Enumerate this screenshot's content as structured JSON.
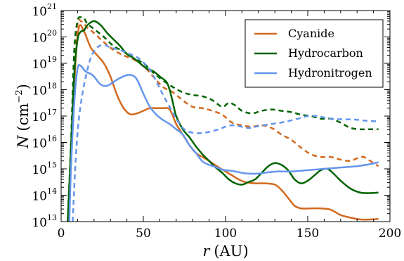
{
  "chart_data": {
    "type": "line",
    "x_label_var": "r",
    "x_label_unit": "(AU)",
    "y_label_var": "N",
    "y_label_unit_pre": "(cm",
    "y_label_unit_exp": "−2",
    "y_label_unit_post": ")",
    "x_ticks": [
      "0",
      "50",
      "100",
      "150",
      "200"
    ],
    "y_ticks": [
      {
        "base": "10",
        "exp": "13"
      },
      {
        "base": "10",
        "exp": "14"
      },
      {
        "base": "10",
        "exp": "15"
      },
      {
        "base": "10",
        "exp": "16"
      },
      {
        "base": "10",
        "exp": "17"
      },
      {
        "base": "10",
        "exp": "18"
      },
      {
        "base": "10",
        "exp": "19"
      },
      {
        "base": "10",
        "exp": "20"
      },
      {
        "base": "10",
        "exp": "21"
      }
    ],
    "xlim": [
      0,
      200
    ],
    "ylim_log10": [
      13,
      21
    ],
    "y_scale": "log",
    "grid": false,
    "legend_position": "top-right",
    "series": [
      {
        "name": "Cyanide",
        "color": "#d2691e",
        "solid": [
          [
            4,
            13
          ],
          [
            5.5,
            14.5
          ],
          [
            7,
            16.8
          ],
          [
            9,
            19.3
          ],
          [
            11,
            20.4
          ],
          [
            14,
            20.2
          ],
          [
            18,
            19.6
          ],
          [
            22,
            19.3
          ],
          [
            26,
            19.0
          ],
          [
            30,
            18.5
          ],
          [
            34,
            17.8
          ],
          [
            38,
            17.3
          ],
          [
            42,
            17.07
          ],
          [
            46,
            17.1
          ],
          [
            50,
            17.2
          ],
          [
            54,
            17.3
          ],
          [
            58,
            17.3
          ],
          [
            62,
            17.3
          ],
          [
            66,
            17.25
          ],
          [
            70,
            16.7
          ],
          [
            74,
            16.3
          ],
          [
            78,
            15.9
          ],
          [
            82,
            15.6
          ],
          [
            86,
            15.45
          ],
          [
            90,
            15.3
          ],
          [
            96,
            15.05
          ],
          [
            100,
            14.9
          ],
          [
            104,
            14.75
          ],
          [
            108,
            14.6
          ],
          [
            112,
            14.5
          ],
          [
            118,
            14.45
          ],
          [
            124,
            14.45
          ],
          [
            130,
            14.4
          ],
          [
            134,
            14.2
          ],
          [
            138,
            13.9
          ],
          [
            142,
            13.6
          ],
          [
            146,
            13.5
          ],
          [
            152,
            13.5
          ],
          [
            158,
            13.5
          ],
          [
            164,
            13.45
          ],
          [
            170,
            13.25
          ],
          [
            176,
            13.15
          ],
          [
            182,
            13.08
          ],
          [
            188,
            13.08
          ],
          [
            193,
            13.1
          ]
        ],
        "dashed": [
          [
            4,
            13
          ],
          [
            6,
            15.5
          ],
          [
            8,
            18.8
          ],
          [
            10,
            20.5
          ],
          [
            12,
            20.6
          ],
          [
            16,
            20.35
          ],
          [
            20,
            20.15
          ],
          [
            26,
            19.8
          ],
          [
            32,
            19.5
          ],
          [
            38,
            19.3
          ],
          [
            44,
            19.15
          ],
          [
            50,
            18.9
          ],
          [
            56,
            18.5
          ],
          [
            62,
            18.1
          ],
          [
            68,
            17.9
          ],
          [
            74,
            17.6
          ],
          [
            80,
            17.35
          ],
          [
            86,
            17.3
          ],
          [
            92,
            17.2
          ],
          [
            98,
            17.05
          ],
          [
            104,
            16.75
          ],
          [
            110,
            16.65
          ],
          [
            116,
            16.6
          ],
          [
            122,
            16.65
          ],
          [
            128,
            16.55
          ],
          [
            134,
            16.3
          ],
          [
            140,
            16.1
          ],
          [
            146,
            15.8
          ],
          [
            152,
            15.55
          ],
          [
            158,
            15.45
          ],
          [
            164,
            15.45
          ],
          [
            170,
            15.35
          ],
          [
            176,
            15.3
          ],
          [
            180,
            15.4
          ],
          [
            184,
            15.45
          ],
          [
            188,
            15.3
          ],
          [
            193,
            15.1
          ]
        ]
      },
      {
        "name": "Hydrocarbon",
        "color": "#006400",
        "solid": [
          [
            4,
            13
          ],
          [
            6,
            15.8
          ],
          [
            8,
            18.6
          ],
          [
            10,
            19.9
          ],
          [
            12,
            20.2
          ],
          [
            14,
            20.25
          ],
          [
            16,
            20.45
          ],
          [
            20,
            20.6
          ],
          [
            24,
            20.45
          ],
          [
            28,
            20.15
          ],
          [
            32,
            19.9
          ],
          [
            36,
            19.65
          ],
          [
            40,
            19.35
          ],
          [
            44,
            19.2
          ],
          [
            48,
            19.0
          ],
          [
            52,
            18.8
          ],
          [
            56,
            18.7
          ],
          [
            60,
            18.5
          ],
          [
            64,
            18.3
          ],
          [
            66,
            18.0
          ],
          [
            68,
            17.5
          ],
          [
            70,
            17.0
          ],
          [
            74,
            16.5
          ],
          [
            78,
            16.2
          ],
          [
            82,
            15.85
          ],
          [
            86,
            15.55
          ],
          [
            90,
            15.3
          ],
          [
            94,
            15.05
          ],
          [
            98,
            14.85
          ],
          [
            102,
            14.6
          ],
          [
            106,
            14.45
          ],
          [
            110,
            14.4
          ],
          [
            114,
            14.5
          ],
          [
            118,
            14.6
          ],
          [
            122,
            14.85
          ],
          [
            126,
            15.1
          ],
          [
            130,
            15.22
          ],
          [
            134,
            15.15
          ],
          [
            138,
            14.95
          ],
          [
            142,
            14.6
          ],
          [
            146,
            14.45
          ],
          [
            150,
            14.55
          ],
          [
            154,
            14.75
          ],
          [
            158,
            14.95
          ],
          [
            162,
            15.0
          ],
          [
            166,
            14.8
          ],
          [
            170,
            14.55
          ],
          [
            176,
            14.25
          ],
          [
            182,
            14.1
          ],
          [
            188,
            14.08
          ],
          [
            193,
            14.1
          ]
        ],
        "dashed": [
          [
            4,
            13
          ],
          [
            6,
            16.0
          ],
          [
            8,
            19.5
          ],
          [
            10,
            20.6
          ],
          [
            12,
            20.75
          ],
          [
            14,
            20.7
          ],
          [
            16,
            20.5
          ],
          [
            20,
            20.3
          ],
          [
            26,
            20.0
          ],
          [
            32,
            19.65
          ],
          [
            38,
            19.45
          ],
          [
            44,
            19.2
          ],
          [
            50,
            19.0
          ],
          [
            56,
            18.65
          ],
          [
            62,
            18.35
          ],
          [
            68,
            18.1
          ],
          [
            74,
            17.9
          ],
          [
            80,
            17.8
          ],
          [
            86,
            17.75
          ],
          [
            92,
            17.6
          ],
          [
            98,
            17.35
          ],
          [
            102,
            17.5
          ],
          [
            106,
            17.4
          ],
          [
            110,
            17.2
          ],
          [
            116,
            17.1
          ],
          [
            122,
            17.2
          ],
          [
            128,
            17.25
          ],
          [
            134,
            17.2
          ],
          [
            140,
            17.15
          ],
          [
            146,
            17.05
          ],
          [
            152,
            17.0
          ],
          [
            158,
            16.9
          ],
          [
            164,
            16.9
          ],
          [
            170,
            16.75
          ],
          [
            176,
            16.55
          ],
          [
            182,
            16.5
          ],
          [
            188,
            16.5
          ],
          [
            193,
            16.5
          ]
        ]
      },
      {
        "name": "Hydronitrogen",
        "color": "#6495ed",
        "solid": [
          [
            5,
            13
          ],
          [
            6,
            15
          ],
          [
            8,
            17.5
          ],
          [
            10,
            18.8
          ],
          [
            12,
            18.9
          ],
          [
            14,
            18.75
          ],
          [
            16,
            18.65
          ],
          [
            18,
            18.6
          ],
          [
            20,
            18.5
          ],
          [
            24,
            18.2
          ],
          [
            28,
            18.15
          ],
          [
            32,
            18.3
          ],
          [
            36,
            18.45
          ],
          [
            40,
            18.55
          ],
          [
            43,
            18.55
          ],
          [
            46,
            18.4
          ],
          [
            50,
            17.85
          ],
          [
            54,
            17.35
          ],
          [
            58,
            17.05
          ],
          [
            62,
            16.85
          ],
          [
            66,
            16.7
          ],
          [
            70,
            16.5
          ],
          [
            74,
            16.3
          ],
          [
            78,
            15.9
          ],
          [
            82,
            15.6
          ],
          [
            86,
            15.28
          ],
          [
            90,
            15.15
          ],
          [
            94,
            15.07
          ],
          [
            98,
            14.97
          ],
          [
            104,
            14.92
          ],
          [
            110,
            14.85
          ],
          [
            114,
            14.82
          ],
          [
            120,
            14.82
          ],
          [
            126,
            14.87
          ],
          [
            132,
            14.9
          ],
          [
            140,
            14.9
          ],
          [
            150,
            14.95
          ],
          [
            160,
            15.0
          ],
          [
            170,
            15.05
          ],
          [
            180,
            15.1
          ],
          [
            188,
            15.18
          ],
          [
            193,
            15.25
          ]
        ],
        "dashed": [
          [
            7,
            13
          ],
          [
            9,
            15.5
          ],
          [
            11,
            17.0
          ],
          [
            14,
            18.2
          ],
          [
            18,
            19.2
          ],
          [
            22,
            19.6
          ],
          [
            26,
            19.7
          ],
          [
            30,
            19.6
          ],
          [
            36,
            19.5
          ],
          [
            42,
            19.35
          ],
          [
            48,
            19.15
          ],
          [
            54,
            18.75
          ],
          [
            58,
            18.3
          ],
          [
            62,
            17.8
          ],
          [
            66,
            17.35
          ],
          [
            70,
            16.9
          ],
          [
            74,
            16.55
          ],
          [
            78,
            16.4
          ],
          [
            84,
            16.35
          ],
          [
            90,
            16.4
          ],
          [
            96,
            16.5
          ],
          [
            100,
            16.6
          ],
          [
            104,
            16.65
          ],
          [
            108,
            16.62
          ],
          [
            114,
            16.55
          ],
          [
            120,
            16.62
          ],
          [
            128,
            16.7
          ],
          [
            136,
            16.78
          ],
          [
            144,
            16.9
          ],
          [
            150,
            17.0
          ],
          [
            156,
            17.0
          ],
          [
            162,
            16.92
          ],
          [
            170,
            16.88
          ],
          [
            178,
            16.87
          ],
          [
            186,
            16.82
          ],
          [
            193,
            16.8
          ]
        ]
      }
    ]
  }
}
